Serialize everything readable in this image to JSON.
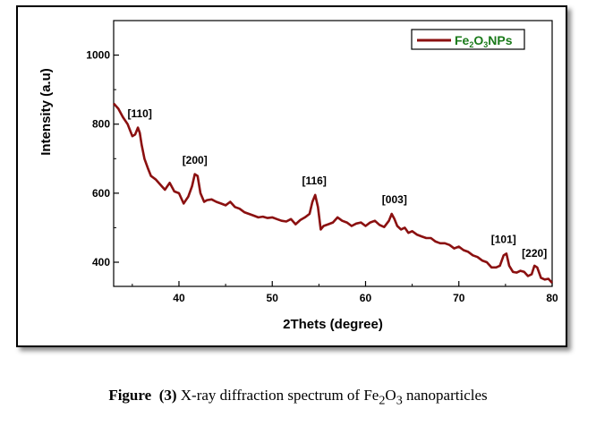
{
  "chart_data": {
    "type": "line",
    "xlabel": "2Thets (degree)",
    "ylabel": "Intensity (a.u)",
    "xlim": [
      33,
      80
    ],
    "ylim": [
      330,
      1100
    ],
    "x_ticks": [
      40,
      50,
      60,
      70,
      80
    ],
    "y_ticks": [
      400,
      600,
      800,
      1000
    ],
    "legend_position": "top-right",
    "series": [
      {
        "name": "Fe2O3NPs",
        "color": "#8b1010",
        "x": [
          33.0,
          33.5,
          34.0,
          34.5,
          35.0,
          35.3,
          35.6,
          35.8,
          36.0,
          36.3,
          36.7,
          37.0,
          37.5,
          38.0,
          38.5,
          39.0,
          39.5,
          40.0,
          40.5,
          41.0,
          41.4,
          41.7,
          42.0,
          42.3,
          42.7,
          43.0,
          43.5,
          44.0,
          44.5,
          45.0,
          45.5,
          46.0,
          46.5,
          47.0,
          47.5,
          48.0,
          48.5,
          49.0,
          49.5,
          50.0,
          50.5,
          51.0,
          51.5,
          52.0,
          52.5,
          53.0,
          53.5,
          54.0,
          54.3,
          54.6,
          54.9,
          55.2,
          55.5,
          56.0,
          56.5,
          57.0,
          57.5,
          58.0,
          58.5,
          59.0,
          59.5,
          60.0,
          60.5,
          61.0,
          61.5,
          62.0,
          62.5,
          62.8,
          63.1,
          63.4,
          63.8,
          64.2,
          64.6,
          65.0,
          65.5,
          66.0,
          66.5,
          67.0,
          67.5,
          68.0,
          68.5,
          69.0,
          69.5,
          70.0,
          70.5,
          71.0,
          71.5,
          72.0,
          72.5,
          73.0,
          73.5,
          74.0,
          74.4,
          74.8,
          75.1,
          75.4,
          75.8,
          76.2,
          76.6,
          77.0,
          77.4,
          77.8,
          78.1,
          78.4,
          78.8,
          79.2,
          79.6,
          80.0
        ],
        "y": [
          860,
          845,
          820,
          800,
          765,
          770,
          790,
          775,
          740,
          700,
          670,
          650,
          640,
          625,
          610,
          630,
          605,
          600,
          570,
          590,
          620,
          655,
          650,
          600,
          575,
          580,
          582,
          575,
          570,
          565,
          575,
          560,
          555,
          545,
          540,
          535,
          530,
          532,
          528,
          530,
          525,
          520,
          518,
          525,
          510,
          522,
          530,
          540,
          575,
          595,
          560,
          495,
          505,
          510,
          515,
          530,
          520,
          515,
          505,
          512,
          515,
          505,
          515,
          520,
          508,
          502,
          520,
          540,
          525,
          505,
          495,
          500,
          485,
          490,
          480,
          475,
          470,
          470,
          460,
          455,
          455,
          450,
          440,
          445,
          435,
          430,
          420,
          415,
          405,
          400,
          385,
          385,
          390,
          420,
          425,
          390,
          372,
          370,
          375,
          372,
          360,
          365,
          390,
          385,
          355,
          350,
          352,
          340
        ]
      }
    ],
    "annotations": [
      {
        "text": "[110]",
        "x": 35.8,
        "y": 805
      },
      {
        "text": "[200]",
        "x": 41.7,
        "y": 670
      },
      {
        "text": "[116]",
        "x": 54.5,
        "y": 610
      },
      {
        "text": "[003]",
        "x": 63.1,
        "y": 555
      },
      {
        "text": "[101]",
        "x": 74.8,
        "y": 440
      },
      {
        "text": "[220]",
        "x": 78.1,
        "y": 400
      }
    ]
  },
  "legend": {
    "label_main": "Fe",
    "sub1": "2",
    "mid": "O",
    "sub2": "3",
    "tail": "NPs"
  },
  "caption": {
    "prefix": "Figure",
    "number": "(3)",
    "text_a": " X-ray diffraction spectrum of Fe",
    "sub1": "2",
    "text_b": "O",
    "sub2": "3",
    "text_c": " nanoparticles"
  }
}
